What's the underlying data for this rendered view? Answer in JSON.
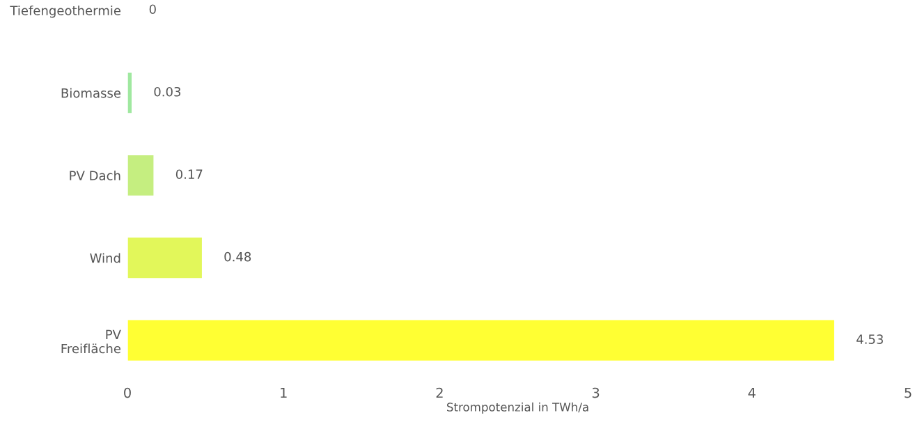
{
  "chart_data": {
    "type": "bar",
    "orientation": "horizontal",
    "xlabel": "Strompotenzial in TWh/a",
    "categories": [
      "Tiefengeothermie",
      "Biomasse",
      "PV Dach",
      "Wind",
      "PV\nFreifläche"
    ],
    "values": [
      0,
      0.03,
      0.17,
      0.48,
      4.53
    ],
    "colors": [
      null,
      "#a0e8a0",
      "#c5ee80",
      "#e2f75a",
      "#ffff33"
    ],
    "xlim": [
      0,
      5
    ],
    "xticks": [
      0,
      1,
      2,
      3,
      4,
      5
    ],
    "data_labels": true,
    "grid": false,
    "legend": false
  }
}
